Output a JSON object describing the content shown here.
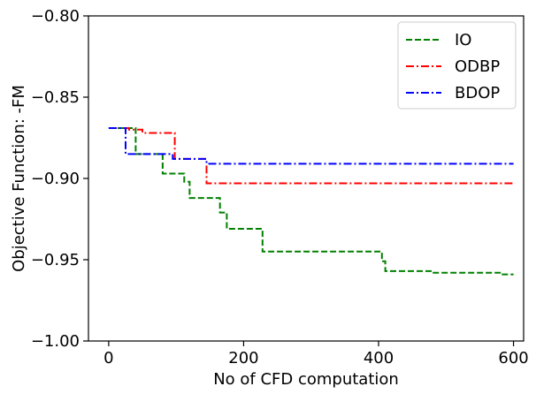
{
  "chart_data": {
    "type": "line",
    "xlabel": "No of CFD computation",
    "ylabel": "Objective Function: -FM",
    "xlim": [
      -30,
      615
    ],
    "ylim": [
      -1.0,
      -0.8
    ],
    "xticks": [
      0,
      200,
      400,
      600
    ],
    "xtick_labels": [
      "0",
      "200",
      "400",
      "600"
    ],
    "yticks": [
      -1.0,
      -0.95,
      -0.9,
      -0.85,
      -0.8
    ],
    "ytick_labels": [
      "−1.00",
      "−0.95",
      "−0.90",
      "−0.85",
      "−0.80"
    ],
    "grid": false,
    "legend_position": "top-right",
    "series": [
      {
        "name": "IO",
        "color": "#008000",
        "style": "dashed",
        "step": true,
        "points": [
          [
            0,
            -0.869
          ],
          [
            40,
            -0.869
          ],
          [
            40,
            -0.885
          ],
          [
            80,
            -0.885
          ],
          [
            80,
            -0.897
          ],
          [
            112,
            -0.897
          ],
          [
            112,
            -0.902
          ],
          [
            120,
            -0.902
          ],
          [
            120,
            -0.912
          ],
          [
            165,
            -0.912
          ],
          [
            165,
            -0.921
          ],
          [
            175,
            -0.921
          ],
          [
            175,
            -0.931
          ],
          [
            228,
            -0.931
          ],
          [
            228,
            -0.945
          ],
          [
            405,
            -0.945
          ],
          [
            405,
            -0.951
          ],
          [
            410,
            -0.951
          ],
          [
            410,
            -0.957
          ],
          [
            480,
            -0.957
          ],
          [
            480,
            -0.958
          ],
          [
            580,
            -0.958
          ],
          [
            580,
            -0.959
          ],
          [
            600,
            -0.959
          ]
        ]
      },
      {
        "name": "ODBP",
        "color": "#ff0000",
        "style": "dashdot",
        "step": true,
        "points": [
          [
            0,
            -0.869
          ],
          [
            30,
            -0.869
          ],
          [
            30,
            -0.87
          ],
          [
            50,
            -0.87
          ],
          [
            50,
            -0.872
          ],
          [
            98,
            -0.872
          ],
          [
            98,
            -0.888
          ],
          [
            145,
            -0.888
          ],
          [
            145,
            -0.903
          ],
          [
            600,
            -0.903
          ]
        ]
      },
      {
        "name": "BDOP",
        "color": "#0000ff",
        "style": "dashdot",
        "step": true,
        "points": [
          [
            0,
            -0.869
          ],
          [
            25,
            -0.869
          ],
          [
            25,
            -0.885
          ],
          [
            95,
            -0.885
          ],
          [
            95,
            -0.888
          ],
          [
            145,
            -0.888
          ],
          [
            145,
            -0.891
          ],
          [
            600,
            -0.891
          ]
        ]
      }
    ]
  }
}
